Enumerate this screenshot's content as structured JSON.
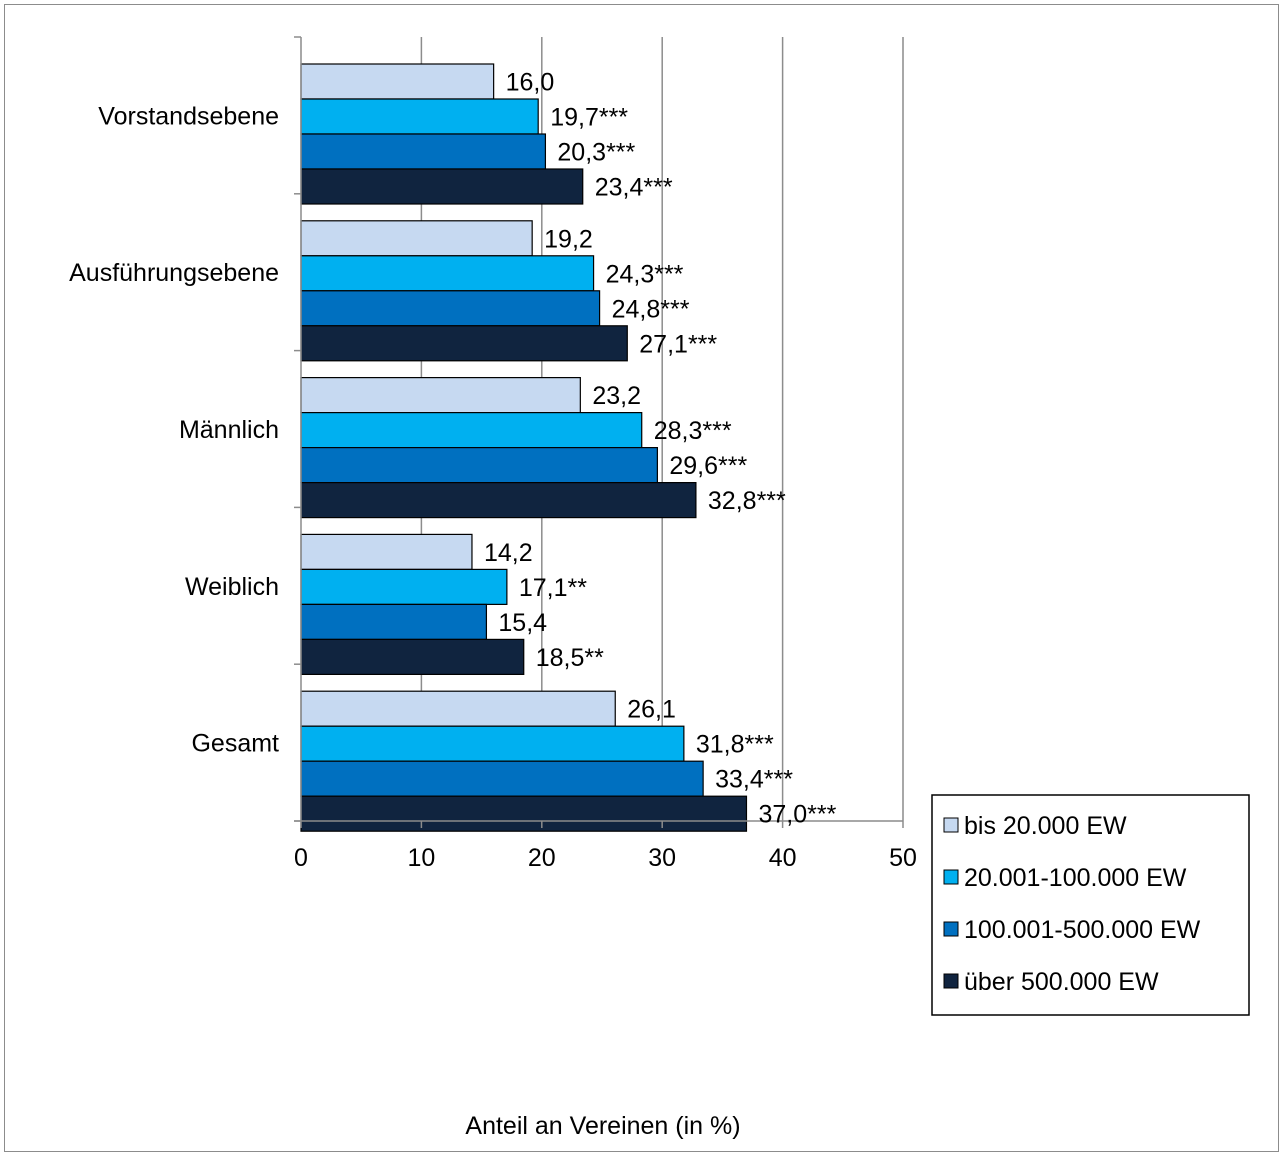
{
  "chart_data": {
    "type": "bar",
    "orientation": "horizontal",
    "title": "",
    "xlabel": "Anteil an Vereinen (in %)",
    "ylabel": "",
    "xlim": [
      0,
      50
    ],
    "x_ticks": [
      0,
      10,
      20,
      30,
      40,
      50
    ],
    "grid": "vertical",
    "legend_position": "bottom-right",
    "categories": [
      "Vorstandsebene",
      "Ausführungsebene",
      "Männlich",
      "Weiblich",
      "Gesamt"
    ],
    "series": [
      {
        "name": "bis 20.000 EW",
        "color": "#c6d9f1",
        "values": [
          16.0,
          19.2,
          23.2,
          14.2,
          26.1
        ],
        "labels": [
          "16,0",
          "19,2",
          "23,2",
          "14,2",
          "26,1"
        ]
      },
      {
        "name": "20.001-100.000 EW",
        "color": "#00b0f0",
        "values": [
          19.7,
          24.3,
          28.3,
          17.1,
          31.8
        ],
        "labels": [
          "19,7***",
          "24,3***",
          "28,3***",
          "17,1**",
          "31,8***"
        ]
      },
      {
        "name": "100.001-500.000 EW",
        "color": "#0070c0",
        "values": [
          20.3,
          24.8,
          29.6,
          15.4,
          33.4
        ],
        "labels": [
          "20,3***",
          "24,8***",
          "29,6***",
          "15,4",
          "33,4***"
        ]
      },
      {
        "name": "über 500.000 EW",
        "color": "#10243f",
        "values": [
          23.4,
          27.1,
          32.8,
          18.5,
          37.0
        ],
        "labels": [
          "23,4***",
          "27,1***",
          "32,8***",
          "18,5**",
          "37,0***"
        ]
      }
    ]
  }
}
